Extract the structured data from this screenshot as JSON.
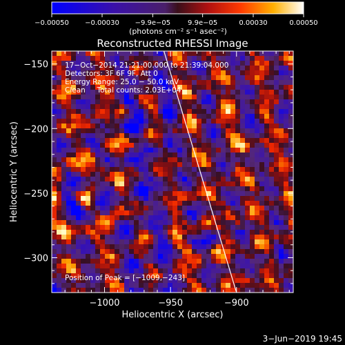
{
  "chart_data": {
    "type": "heatmap",
    "title": "Reconstructed RHESSI Image",
    "xlabel": "Heliocentric X (arcsec)",
    "ylabel": "Heliocentric Y (arcsec)",
    "xlim": [
      -1040,
      -857
    ],
    "ylim": [
      -327,
      -140
    ],
    "xticks": [
      {
        "value": -1000,
        "label": "−1000"
      },
      {
        "value": -950,
        "label": "−950"
      },
      {
        "value": -900,
        "label": "−900"
      }
    ],
    "yticks": [
      {
        "value": -150,
        "label": "−150"
      },
      {
        "value": -200,
        "label": "−200"
      },
      {
        "value": -250,
        "label": "−250"
      },
      {
        "value": -300,
        "label": "−300"
      }
    ],
    "colorbar": {
      "range": [
        -0.0005,
        0.0005
      ],
      "unit_label": "(photons cm⁻² s⁻¹ asec⁻²)",
      "ticks": [
        {
          "value": -0.0005,
          "label": "−0.00050"
        },
        {
          "value": -0.0003,
          "label": "−0.00030"
        },
        {
          "value": -9.9e-05,
          "label": "−9.9e−05"
        },
        {
          "value": 9.9e-05,
          "label": "9.9e−05"
        },
        {
          "value": 0.0003,
          "label": "0.00030"
        },
        {
          "value": 0.0005,
          "label": "0.00050"
        }
      ]
    },
    "annotations": [
      "17−Oct−2014 21:21:00.000 to 21:39:04.000",
      "Detectors: 3F 6F 9F, Att 0",
      "Energy Range: 25.0 − 50.0 keV",
      "Clean     Total counts: 2.03E+04"
    ],
    "peak_label": "Position of Peak = [−1009,−243]",
    "peak": {
      "x": -1009,
      "y": -243
    },
    "limb_line": [
      {
        "x": -955,
        "y": -140
      },
      {
        "x": -900,
        "y": -327
      }
    ],
    "grid": false
  },
  "footer": {
    "timestamp": "3−Jun−2019 19:45"
  }
}
